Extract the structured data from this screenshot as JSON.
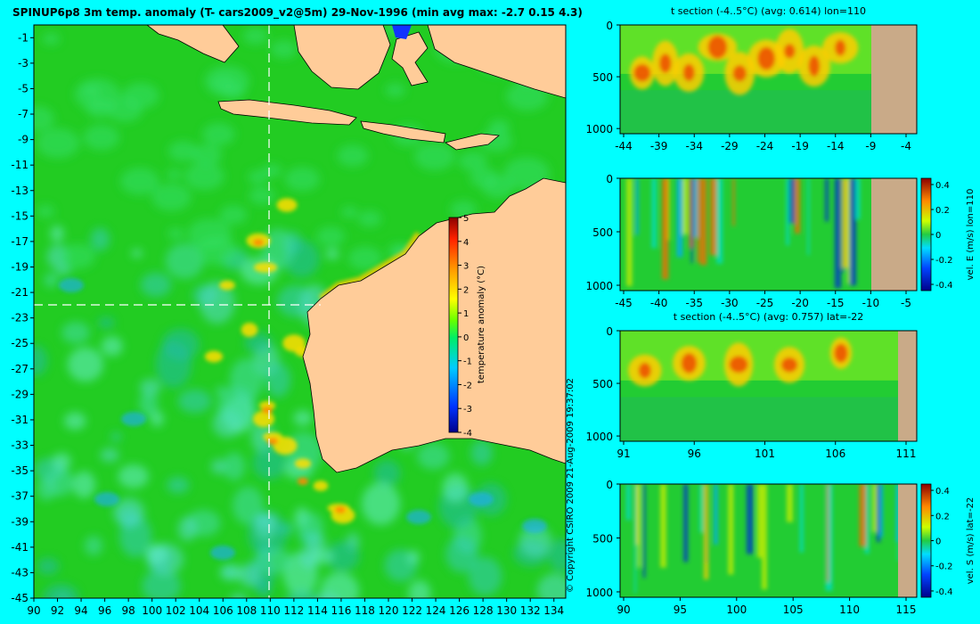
{
  "main_map": {
    "title": "SPINUP6p8 3m temp. anomaly (T- cars2009_v2@5m) 29-Nov-1996 (min avg max: -2.7 0.15 4.3)",
    "lon_ticks": [
      "90",
      "92",
      "94",
      "96",
      "98",
      "100",
      "102",
      "104",
      "106",
      "108",
      "110",
      "112",
      "114",
      "116",
      "118",
      "120",
      "122",
      "124",
      "126",
      "128",
      "130",
      "132",
      "134"
    ],
    "lat_ticks": [
      "-1",
      "-3",
      "-5",
      "-7",
      "-9",
      "-11",
      "-13",
      "-15",
      "-17",
      "-19",
      "-21",
      "-23",
      "-25",
      "-27",
      "-29",
      "-31",
      "-33",
      "-35",
      "-37",
      "-39",
      "-41",
      "-43",
      "-45"
    ],
    "lon_range": [
      90,
      135
    ],
    "lat_range": [
      -45,
      0
    ],
    "section_lon": 110,
    "section_lat": -22,
    "colorbar": {
      "label": "temperature anomaly (°C)",
      "ticks": [
        "5",
        "4",
        "3",
        "2",
        "1",
        "0",
        "-1",
        "-2",
        "-3",
        "-4"
      ],
      "range": [
        -4,
        5
      ]
    },
    "copyright": "© Copyright CSIRO 2009   21-Aug-2009 19:37:02"
  },
  "panels": [
    {
      "id": "t-section-lon",
      "title": "t section (-4..5°C) (avg: 0.614) lon=110",
      "x_ticks": [
        "-44",
        "-39",
        "-34",
        "-29",
        "-24",
        "-19",
        "-14",
        "-9",
        "-4"
      ],
      "y_ticks": [
        "0",
        "500",
        "1000"
      ],
      "colorbar": null
    },
    {
      "id": "vel-e-lon",
      "title": "",
      "x_ticks": [
        "-45",
        "-40",
        "-35",
        "-30",
        "-25",
        "-20",
        "-15",
        "-10",
        "-5"
      ],
      "y_ticks": [
        "0",
        "500",
        "1000"
      ],
      "colorbar": {
        "label": "vel. E (m/s) lon=110",
        "ticks": [
          "0.4",
          "0.2",
          "0",
          "-0.2",
          "-0.4"
        ]
      }
    },
    {
      "id": "t-section-lat",
      "title": "t section (-4..5°C) (avg: 0.757) lat=-22",
      "x_ticks": [
        "91",
        "96",
        "101",
        "106",
        "111"
      ],
      "y_ticks": [
        "0",
        "500",
        "1000"
      ],
      "colorbar": null
    },
    {
      "id": "vel-s-lat",
      "title": "",
      "x_ticks": [
        "90",
        "95",
        "100",
        "105",
        "110",
        "115"
      ],
      "y_ticks": [
        "0",
        "500",
        "1000"
      ],
      "colorbar": {
        "label": "vel. S (m/s) lat=-22",
        "ticks": [
          "0.4",
          "0.2",
          "0",
          "-0.2",
          "-0.4"
        ]
      }
    }
  ],
  "colors": {
    "background": "#00ffff",
    "land": "#ffcc99",
    "section_land": "#c9aa88",
    "ocean_base": "#22cc22"
  }
}
